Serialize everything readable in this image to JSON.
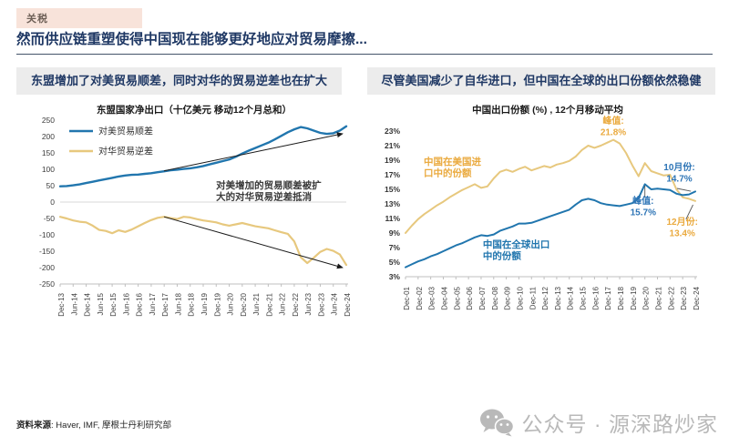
{
  "page": {
    "tag": "关税",
    "title": "然而供应链重塑使得中国现在能够更好地应对贸易摩擦...",
    "source_label": "资料来源",
    "source_rest": ": Haver, IMF, 摩根士丹利研究部"
  },
  "panels": {
    "left_header": "东盟增加了对美贸易顺差，同时对华的贸易逆差也在扩大",
    "right_header": "尽管美国减少了自华进口，但中国在全球的出口份额依然稳健"
  },
  "watermark": {
    "icon": "wechat-icon",
    "text": "公众号 · 源深路炒家"
  },
  "colors": {
    "navy": "#1f3864",
    "blue_line": "#2176ae",
    "gold_line": "#e7c87e",
    "gold_text": "#eaaa3f",
    "blue_text": "#2e75b6",
    "header_bg": "#ececec",
    "tag_bg": "#f8e3da",
    "watermark_gray": "#b9b9b9"
  },
  "chart_data": [
    {
      "type": "line",
      "title": "东盟国家净出口（十亿美元 移动12个月总和）",
      "ylim": [
        -250,
        250
      ],
      "yticks": [
        250,
        200,
        150,
        100,
        50,
        0,
        -50,
        -100,
        -150,
        -200,
        -250
      ],
      "zero_line": true,
      "grid": "zero line only",
      "legend": true,
      "legend_position": "top-left",
      "x_tick_labels": [
        "Dec-13",
        "Jun-14",
        "Dec-14",
        "Jun-15",
        "Dec-15",
        "Jun-16",
        "Dec-16",
        "Jun-17",
        "Dec-17",
        "Jun-18",
        "Dec-18",
        "Jun-19",
        "Dec-19",
        "Jun-20",
        "Dec-20",
        "Jun-21",
        "Dec-21",
        "Jun-22",
        "Dec-22",
        "Jun-23",
        "Dec-23",
        "Jun-24",
        "Dec-24"
      ],
      "points_per_tick": 2,
      "series": [
        {
          "name": "对美贸易顺差",
          "color": "#2176ae",
          "width": 2.4,
          "values": [
            48,
            49,
            51,
            54,
            58,
            62,
            66,
            70,
            74,
            78,
            81,
            83,
            84,
            86,
            88,
            91,
            94,
            97,
            99,
            101,
            103,
            106,
            110,
            115,
            120,
            125,
            130,
            138,
            148,
            157,
            165,
            173,
            181,
            191,
            202,
            213,
            222,
            229,
            225,
            218,
            211,
            208,
            210,
            218,
            231
          ]
        },
        {
          "name": "对华贸易逆差",
          "color": "#e7c87e",
          "width": 2.2,
          "values": [
            -45,
            -50,
            -56,
            -60,
            -62,
            -72,
            -85,
            -88,
            -95,
            -86,
            -91,
            -84,
            -74,
            -64,
            -55,
            -48,
            -45,
            -49,
            -52,
            -45,
            -47,
            -52,
            -56,
            -59,
            -62,
            -68,
            -72,
            -68,
            -64,
            -69,
            -74,
            -77,
            -80,
            -86,
            -92,
            -97,
            -120,
            -168,
            -186,
            -170,
            -152,
            -143,
            -149,
            -160,
            -192
          ]
        }
      ],
      "annotations": [
        {
          "lines": [
            "对美增加的贸易顺差被扩",
            "大的对华贸易逆差抵消"
          ],
          "fx": 0.545,
          "fy": 0.417,
          "color": "#3a3a3a",
          "size": 10.5,
          "align": "left"
        }
      ],
      "arrows": [
        {
          "x1": 0.363,
          "y1": 0.31,
          "x2": 0.987,
          "y2": 0.083
        },
        {
          "x1": 0.363,
          "y1": 0.59,
          "x2": 0.987,
          "y2": 0.9
        }
      ]
    },
    {
      "type": "line",
      "title": "中国出口份额 (%) , 12个月移动平均",
      "ylim": [
        3,
        23
      ],
      "yticks": [
        23,
        21,
        19,
        17,
        15,
        13,
        11,
        9,
        7,
        5,
        3
      ],
      "ytick_suffix": "%",
      "grid": "off",
      "x_tick_labels": [
        "Dec-01",
        "Dec-02",
        "Dec-03",
        "Dec-04",
        "Dec-05",
        "Dec-06",
        "Dec-07",
        "Dec-08",
        "Dec-09",
        "Dec-10",
        "Dec-11",
        "Dec-12",
        "Dec-13",
        "Dec-14",
        "Dec-15",
        "Dec-16",
        "Dec-17",
        "Dec-18",
        "Dec-19",
        "Dec-20",
        "Dec-21",
        "Dec-22",
        "Dec-23",
        "Dec-24"
      ],
      "points_per_tick": 2,
      "series": [
        {
          "name": "中国在美国进口中的份额",
          "color": "#e7c87e",
          "width": 2,
          "values": [
            9.0,
            10.0,
            10.9,
            11.6,
            12.2,
            12.8,
            13.3,
            13.9,
            14.4,
            14.9,
            15.3,
            15.7,
            15.2,
            15.4,
            16.5,
            17.4,
            17.7,
            17.4,
            17.8,
            18.1,
            17.6,
            17.9,
            18.2,
            18.0,
            18.4,
            18.6,
            18.9,
            19.5,
            20.4,
            21.0,
            20.7,
            21.0,
            21.4,
            21.8,
            21.3,
            20.0,
            18.3,
            16.8,
            18.6,
            17.5,
            17.2,
            16.9,
            17.0,
            15.0,
            13.9,
            13.7,
            13.4
          ]
        },
        {
          "name": "中国在全球出口中的份额",
          "color": "#2176ae",
          "width": 2,
          "values": [
            4.3,
            4.7,
            5.1,
            5.4,
            5.8,
            6.1,
            6.5,
            6.9,
            7.3,
            7.6,
            8.0,
            8.4,
            8.7,
            8.6,
            8.8,
            9.3,
            9.6,
            9.9,
            10.3,
            10.3,
            10.4,
            10.7,
            11.0,
            11.3,
            11.6,
            11.9,
            12.2,
            12.9,
            13.5,
            13.7,
            13.5,
            13.1,
            12.9,
            12.8,
            12.7,
            12.9,
            13.1,
            13.8,
            15.7,
            15.0,
            15.1,
            15.0,
            14.9,
            14.4,
            14.2,
            14.3,
            14.7
          ]
        }
      ],
      "annotations": [
        {
          "lines": [
            "峰值:",
            "21.8%"
          ],
          "fx": 0.717,
          "fy": -0.05,
          "color": "#eaaa3f",
          "size": 10
        },
        {
          "lines": [
            "中国在美国进",
            "口中的份额"
          ],
          "fx": 0.063,
          "fy": 0.23,
          "color": "#eaaa3f",
          "size": 10.5,
          "align": "left"
        },
        {
          "lines": [
            "10月份:",
            "14.7%"
          ],
          "fx": 0.945,
          "fy": 0.27,
          "color": "#2e75b6",
          "size": 10
        },
        {
          "lines": [
            "峰值:",
            "15.7%"
          ],
          "fx": 0.82,
          "fy": 0.5,
          "color": "#2e75b6",
          "size": 10
        },
        {
          "lines": [
            "12月份:",
            "13.4%"
          ],
          "fx": 0.955,
          "fy": 0.645,
          "color": "#eaaa3f",
          "size": 10
        },
        {
          "lines": [
            "中国在全球出口",
            "中的份额"
          ],
          "fx": 0.267,
          "fy": 0.8,
          "color": "#2176ae",
          "size": 10.5,
          "align": "left"
        }
      ],
      "pointers": [
        {
          "x1": 0.937,
          "y1": 0.394,
          "x2": 0.985,
          "y2": 0.413
        },
        {
          "x1": 0.826,
          "y1": 0.375,
          "x2": 0.826,
          "y2": 0.455
        },
        {
          "x1": 0.968,
          "y1": 0.606,
          "x2": 0.992,
          "y2": 0.506
        }
      ]
    }
  ]
}
